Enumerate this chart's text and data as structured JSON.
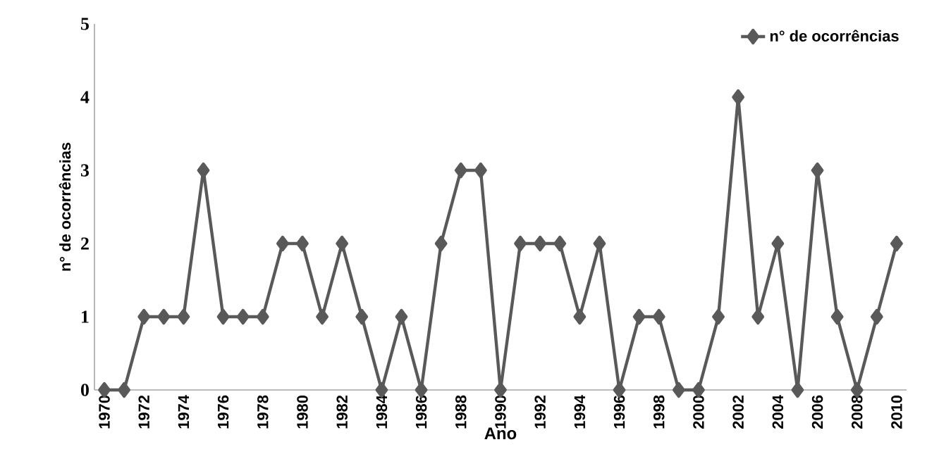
{
  "chart_data": {
    "type": "line",
    "xlabel": "Ano",
    "ylabel": "n° de ocorrências",
    "categories": [
      "1970",
      null,
      "1972",
      null,
      "1974",
      null,
      "1976",
      null,
      "1978",
      null,
      "1980",
      null,
      "1982",
      null,
      "1984",
      null,
      "1986",
      null,
      "1988",
      null,
      "1990",
      null,
      "1992",
      null,
      "1994",
      null,
      "1996",
      null,
      "1998",
      null,
      "2000",
      null,
      "2002",
      null,
      "2004",
      null,
      "2006",
      null,
      "2008",
      null,
      "2010"
    ],
    "series": [
      {
        "name": "n° de ocorrências",
        "color": "#595959",
        "values": [
          0,
          0,
          1,
          1,
          1,
          3,
          1,
          1,
          1,
          2,
          2,
          1,
          2,
          1,
          0,
          1,
          0,
          2,
          3,
          3,
          0,
          2,
          2,
          2,
          1,
          2,
          0,
          1,
          1,
          0,
          0,
          1,
          4,
          1,
          2,
          0,
          3,
          1,
          0,
          1,
          2
        ]
      }
    ],
    "ylim": [
      0,
      5
    ],
    "yticks": [
      0,
      1,
      2,
      3,
      4,
      5
    ],
    "grid": false,
    "legend": "top right",
    "marker": "diamond",
    "line_style": "solid"
  }
}
